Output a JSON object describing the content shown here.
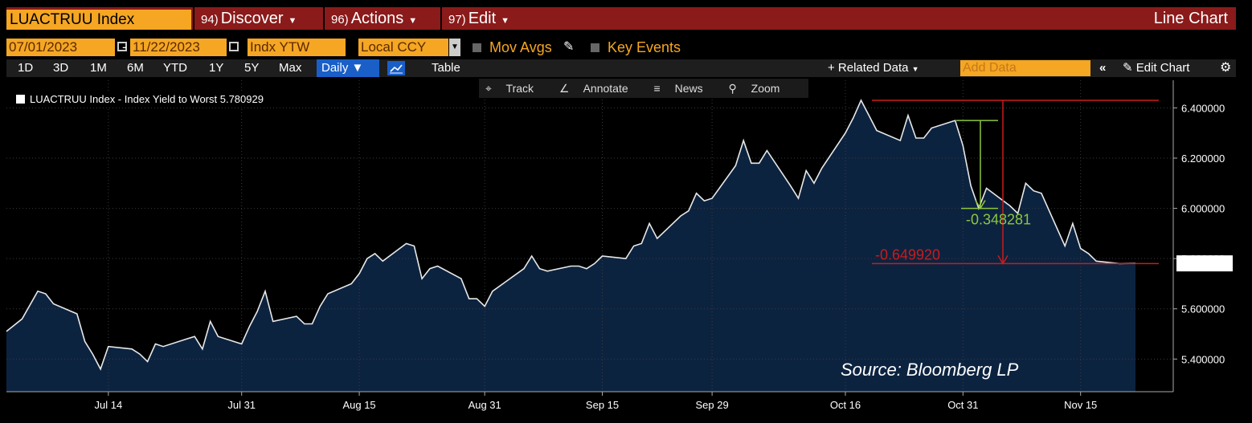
{
  "header": {
    "security": "LUACTRUU Index",
    "menus": [
      {
        "num": "94)",
        "label": "Discover"
      },
      {
        "num": "96)",
        "label": "Actions"
      },
      {
        "num": "97)",
        "label": "Edit"
      }
    ],
    "chart_kind": "Line Chart"
  },
  "controls": {
    "start_date": "07/01/2023",
    "end_date": "11/22/2023",
    "field": "Indx YTW",
    "currency": "Local CCY",
    "mov_avgs": "Mov Avgs",
    "key_events": "Key Events",
    "periods": [
      "1D",
      "3D",
      "1M",
      "6M",
      "YTD",
      "1Y",
      "5Y",
      "Max"
    ],
    "frequency": "Daily",
    "table": "Table",
    "related_data": "+ Related Data",
    "add_data_placeholder": "Add Data",
    "edit_chart": "Edit Chart",
    "tools": [
      "Track",
      "Annotate",
      "News",
      "Zoom"
    ]
  },
  "source": "Source: Bloomberg LP",
  "colors": {
    "area": "#0c2340",
    "line": "#e8e8e8",
    "red": "#cc1a1a",
    "green": "#8ec63f",
    "orange": "#f5a623",
    "bar": "#8b1a1a"
  },
  "chart_data": {
    "type": "area",
    "legend": "LUACTRUU Index - Index Yield to Worst 5.780929",
    "last_value_label": "5.780929",
    "last_value": 5.780929,
    "ylim": [
      5.27,
      6.51
    ],
    "y_ticks": [
      5.4,
      5.6,
      5.8,
      6.0,
      6.2,
      6.4
    ],
    "y_tick_labels": [
      "5.400000",
      "5.600000",
      "5.800000",
      "6.000000",
      "6.200000",
      "6.400000"
    ],
    "x_tick_labels": [
      {
        "label": "Jul 14",
        "date": "2023-07-14"
      },
      {
        "label": "Jul 31",
        "date": "2023-07-31"
      },
      {
        "label": "Aug 15",
        "date": "2023-08-15"
      },
      {
        "label": "Aug 31",
        "date": "2023-08-31"
      },
      {
        "label": "Sep 15",
        "date": "2023-09-15"
      },
      {
        "label": "Sep 29",
        "date": "2023-09-29"
      },
      {
        "label": "Oct 16",
        "date": "2023-10-16"
      },
      {
        "label": "Oct 31",
        "date": "2023-10-31"
      },
      {
        "label": "Nov 15",
        "date": "2023-11-15"
      }
    ],
    "series": [
      {
        "points": [
          [
            "2023-07-01",
            5.51
          ],
          [
            "2023-07-03",
            5.56
          ],
          [
            "2023-07-05",
            5.67
          ],
          [
            "2023-07-06",
            5.66
          ],
          [
            "2023-07-07",
            5.62
          ],
          [
            "2023-07-10",
            5.58
          ],
          [
            "2023-07-11",
            5.47
          ],
          [
            "2023-07-12",
            5.42
          ],
          [
            "2023-07-13",
            5.36
          ],
          [
            "2023-07-14",
            5.45
          ],
          [
            "2023-07-17",
            5.44
          ],
          [
            "2023-07-18",
            5.42
          ],
          [
            "2023-07-19",
            5.39
          ],
          [
            "2023-07-20",
            5.46
          ],
          [
            "2023-07-21",
            5.45
          ],
          [
            "2023-07-24",
            5.48
          ],
          [
            "2023-07-25",
            5.49
          ],
          [
            "2023-07-26",
            5.44
          ],
          [
            "2023-07-27",
            5.55
          ],
          [
            "2023-07-28",
            5.49
          ],
          [
            "2023-07-31",
            5.46
          ],
          [
            "2023-08-01",
            5.53
          ],
          [
            "2023-08-02",
            5.59
          ],
          [
            "2023-08-03",
            5.67
          ],
          [
            "2023-08-04",
            5.55
          ],
          [
            "2023-08-07",
            5.57
          ],
          [
            "2023-08-08",
            5.54
          ],
          [
            "2023-08-09",
            5.54
          ],
          [
            "2023-08-10",
            5.61
          ],
          [
            "2023-08-11",
            5.66
          ],
          [
            "2023-08-14",
            5.7
          ],
          [
            "2023-08-15",
            5.74
          ],
          [
            "2023-08-16",
            5.8
          ],
          [
            "2023-08-17",
            5.82
          ],
          [
            "2023-08-18",
            5.79
          ],
          [
            "2023-08-21",
            5.86
          ],
          [
            "2023-08-22",
            5.85
          ],
          [
            "2023-08-23",
            5.72
          ],
          [
            "2023-08-24",
            5.76
          ],
          [
            "2023-08-25",
            5.77
          ],
          [
            "2023-08-28",
            5.72
          ],
          [
            "2023-08-29",
            5.64
          ],
          [
            "2023-08-30",
            5.64
          ],
          [
            "2023-08-31",
            5.61
          ],
          [
            "2023-09-01",
            5.67
          ],
          [
            "2023-09-05",
            5.76
          ],
          [
            "2023-09-06",
            5.81
          ],
          [
            "2023-09-07",
            5.76
          ],
          [
            "2023-09-08",
            5.75
          ],
          [
            "2023-09-11",
            5.77
          ],
          [
            "2023-09-12",
            5.77
          ],
          [
            "2023-09-13",
            5.76
          ],
          [
            "2023-09-14",
            5.78
          ],
          [
            "2023-09-15",
            5.81
          ],
          [
            "2023-09-18",
            5.8
          ],
          [
            "2023-09-19",
            5.85
          ],
          [
            "2023-09-20",
            5.86
          ],
          [
            "2023-09-21",
            5.94
          ],
          [
            "2023-09-22",
            5.88
          ],
          [
            "2023-09-25",
            5.97
          ],
          [
            "2023-09-26",
            5.99
          ],
          [
            "2023-09-27",
            6.06
          ],
          [
            "2023-09-28",
            6.03
          ],
          [
            "2023-09-29",
            6.04
          ],
          [
            "2023-10-02",
            6.17
          ],
          [
            "2023-10-03",
            6.27
          ],
          [
            "2023-10-04",
            6.18
          ],
          [
            "2023-10-05",
            6.18
          ],
          [
            "2023-10-06",
            6.23
          ],
          [
            "2023-10-09",
            6.09
          ],
          [
            "2023-10-10",
            6.04
          ],
          [
            "2023-10-11",
            6.15
          ],
          [
            "2023-10-12",
            6.1
          ],
          [
            "2023-10-13",
            6.16
          ],
          [
            "2023-10-16",
            6.3
          ],
          [
            "2023-10-17",
            6.36
          ],
          [
            "2023-10-18",
            6.43
          ],
          [
            "2023-10-19",
            6.37
          ],
          [
            "2023-10-20",
            6.31
          ],
          [
            "2023-10-23",
            6.27
          ],
          [
            "2023-10-24",
            6.37
          ],
          [
            "2023-10-25",
            6.28
          ],
          [
            "2023-10-26",
            6.28
          ],
          [
            "2023-10-27",
            6.32
          ],
          [
            "2023-10-30",
            6.35
          ],
          [
            "2023-10-31",
            6.25
          ],
          [
            "2023-11-01",
            6.09
          ],
          [
            "2023-11-02",
            6.0
          ],
          [
            "2023-11-03",
            6.08
          ],
          [
            "2023-11-06",
            6.01
          ],
          [
            "2023-11-07",
            5.98
          ],
          [
            "2023-11-08",
            6.1
          ],
          [
            "2023-11-09",
            6.07
          ],
          [
            "2023-11-10",
            6.06
          ],
          [
            "2023-11-13",
            5.85
          ],
          [
            "2023-11-14",
            5.94
          ],
          [
            "2023-11-15",
            5.84
          ],
          [
            "2023-11-16",
            5.82
          ],
          [
            "2023-11-17",
            5.79
          ],
          [
            "2023-11-20",
            5.78
          ],
          [
            "2023-11-22",
            5.780929
          ]
        ]
      }
    ],
    "annotations": [
      {
        "label": "-0.348281",
        "color": "#8ec63f",
        "from": 6.35,
        "to": 6.0
      },
      {
        "label": "-0.649920",
        "color": "#cc1a1a",
        "from": 6.43,
        "to": 5.78
      }
    ]
  }
}
